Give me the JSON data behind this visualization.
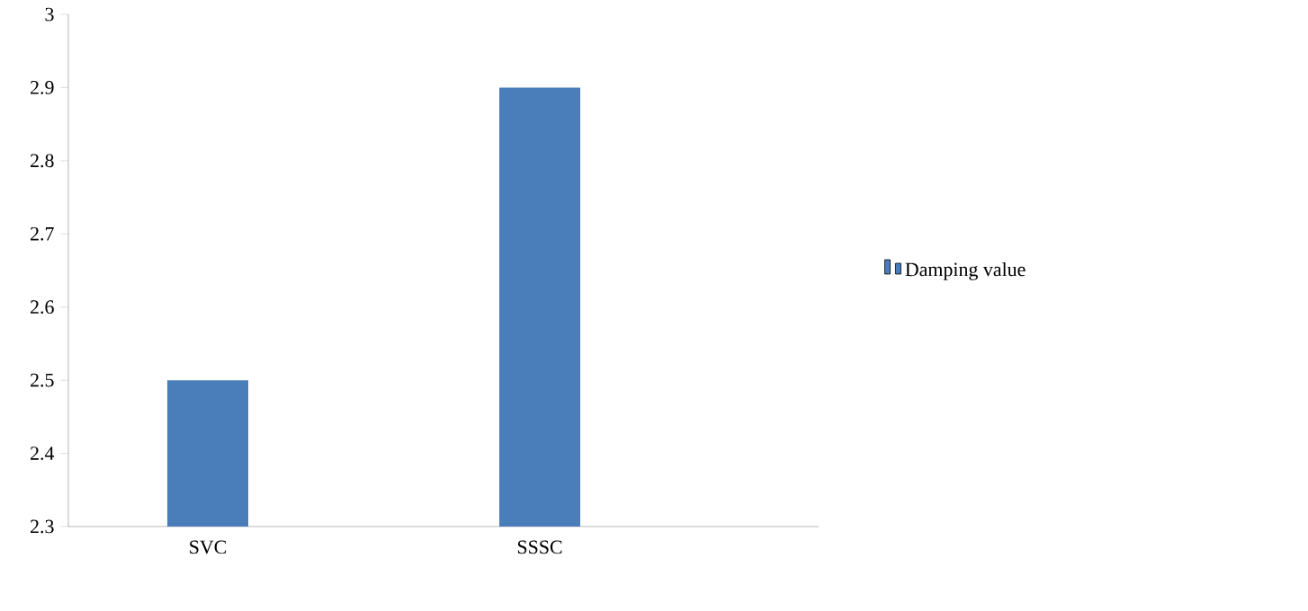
{
  "chart_data": {
    "type": "bar",
    "categories": [
      "SVC",
      "SSSC"
    ],
    "series": [
      {
        "name": "Damping value",
        "color": "#4a7ebb",
        "values": [
          2.5,
          2.9
        ]
      }
    ],
    "ylim": [
      2.3,
      3
    ],
    "yticks": [
      2.3,
      2.4,
      2.5,
      2.6,
      2.7,
      2.8,
      2.9,
      3
    ],
    "grid": false,
    "legend": "right"
  }
}
